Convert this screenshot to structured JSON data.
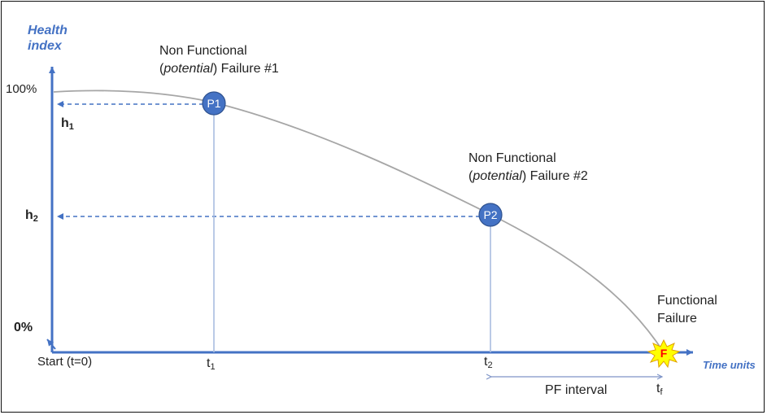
{
  "y_axis": {
    "title_line1": "Health",
    "title_line2": "index",
    "top_label": "100%",
    "zero_label": "0%"
  },
  "x_axis": {
    "title": "Time units",
    "origin_label": "Start (t=0)"
  },
  "levels": [
    {
      "main": "h",
      "sub": "1"
    },
    {
      "main": "h",
      "sub": "2"
    }
  ],
  "times": [
    {
      "main": "t",
      "sub": "1"
    },
    {
      "main": "t",
      "sub": "2"
    },
    {
      "main": "t",
      "sub": "f"
    }
  ],
  "points": {
    "p1": {
      "label": "P1"
    },
    "p2": {
      "label": "P2"
    },
    "f": {
      "label": "F"
    }
  },
  "annotations": {
    "failure1": {
      "line1": "Non Functional",
      "paren_open": "(",
      "italic": "potential",
      "rest": ") Failure #1"
    },
    "failure2": {
      "line1": "Non Functional",
      "paren_open": "(",
      "italic": "potential",
      "rest": ") Failure #2"
    },
    "functional": {
      "line1": "Functional",
      "line2": "Failure"
    }
  },
  "pf_interval": "PF interval",
  "colors": {
    "axis": "#4472c4",
    "curve": "#a6a6a6",
    "marker": "#4472c4",
    "failure_burst": "#ffff00",
    "failure_text": "#ff0000"
  }
}
